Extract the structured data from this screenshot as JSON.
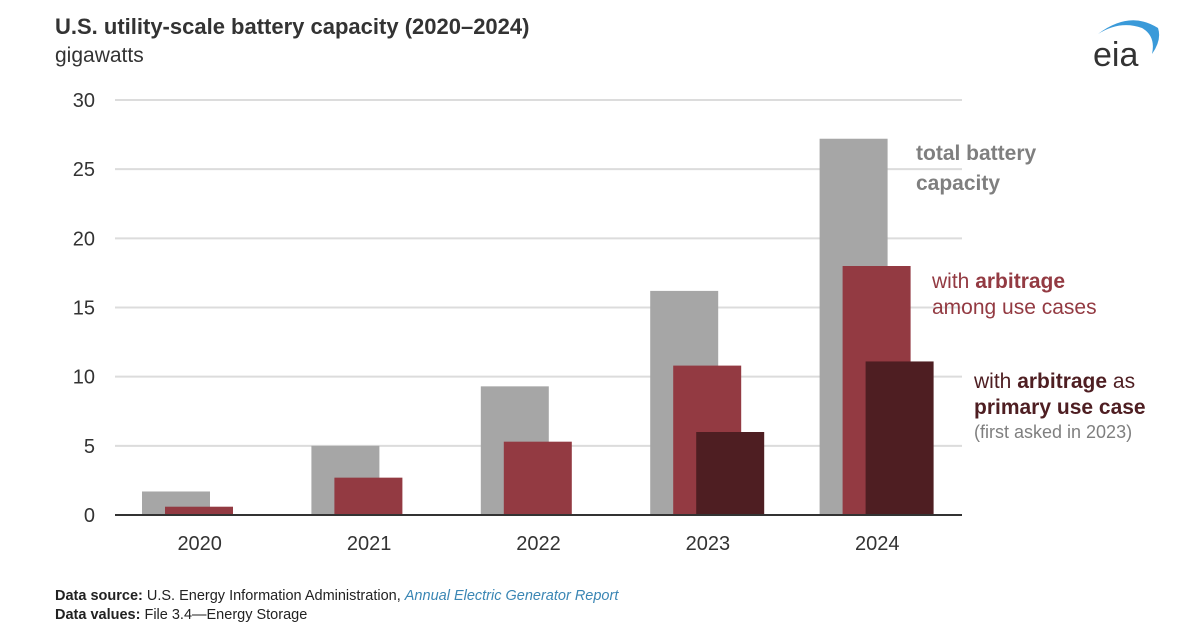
{
  "header": {
    "title": "U.S. utility-scale battery capacity (2020–2024)",
    "subtitle": "gigawatts",
    "logo_text": "eia",
    "logo_icon": "eia-logo-icon"
  },
  "colors": {
    "total": "#a6a6a6",
    "arbitrage_among": "#933a42",
    "arbitrage_primary": "#4e1e22",
    "grid": "#dcdcdc",
    "axis": "#333333",
    "anno_total": "#7f7f7f",
    "anno_primary_note": "#7f7f7f",
    "logo_arc": "#3a9ad9",
    "link": "#3a86b4"
  },
  "chart_data": {
    "type": "bar",
    "title": "U.S. utility-scale battery capacity (2020–2024)",
    "ylabel": "gigawatts",
    "xlabel": "",
    "categories": [
      "2020",
      "2021",
      "2022",
      "2023",
      "2024"
    ],
    "ylim": [
      0,
      30
    ],
    "yticks": [
      0,
      5,
      10,
      15,
      20,
      25,
      30
    ],
    "grid": true,
    "legend": "direct labels at right",
    "series": [
      {
        "name": "total battery capacity",
        "values": [
          1.7,
          5.0,
          9.3,
          16.2,
          27.2
        ]
      },
      {
        "name": "with arbitrage among use cases",
        "values": [
          0.6,
          2.7,
          5.3,
          10.8,
          18.0
        ]
      },
      {
        "name": "with arbitrage as primary use case (first asked in 2023)",
        "values": [
          null,
          null,
          null,
          6.0,
          11.1
        ]
      }
    ],
    "annotations": {
      "total": {
        "line1": "total battery",
        "line2": "capacity"
      },
      "among": {
        "line1_pre": "with ",
        "line1_bold": "arbitrage",
        "line2": "among use cases"
      },
      "primary": {
        "line1_pre": "with ",
        "line1_bold": "arbitrage",
        "line1_post": " as",
        "line2_bold": "primary use case",
        "line3": "(first asked in 2023)"
      }
    }
  },
  "footer": {
    "source_label": "Data source:",
    "source_text": " U.S. Energy Information Administration, ",
    "source_link": "Annual Electric Generator Report",
    "values_label": "Data values:",
    "values_text": " File 3.4—Energy Storage"
  }
}
